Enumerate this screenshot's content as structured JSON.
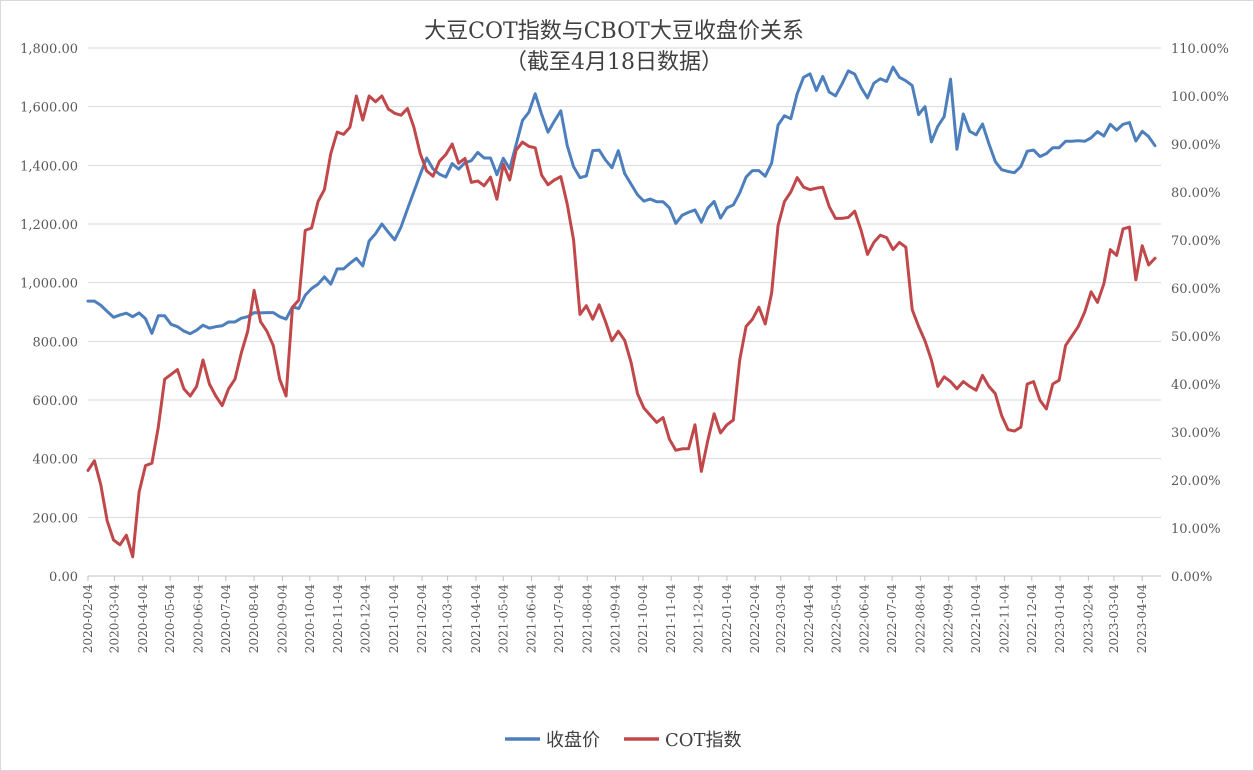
{
  "chart_data": {
    "type": "line",
    "title": "大豆COT指数与CBOT大豆收盘价关系",
    "subtitle": "（截至4月18日数据）",
    "xlabel": "",
    "ylabel": "",
    "y_left_ticks": [
      "0.00",
      "200.00",
      "400.00",
      "600.00",
      "800.00",
      "1,000.00",
      "1,200.00",
      "1,400.00",
      "1,600.00",
      "1,800.00"
    ],
    "y_right_ticks": [
      "0.00%",
      "10.00%",
      "20.00%",
      "30.00%",
      "40.00%",
      "50.00%",
      "60.00%",
      "70.00%",
      "80.00%",
      "90.00%",
      "100.00%",
      "110.00%"
    ],
    "ylim_left": [
      0,
      1800
    ],
    "ylim_right": [
      0,
      110
    ],
    "x_tick_labels": [
      "2020-02-04",
      "2020-03-04",
      "2020-04-04",
      "2020-05-04",
      "2020-06-04",
      "2020-07-04",
      "2020-08-04",
      "2020-09-04",
      "2020-10-04",
      "2020-11-04",
      "2020-12-04",
      "2021-01-04",
      "2021-02-04",
      "2021-03-04",
      "2021-04-04",
      "2021-05-04",
      "2021-06-04",
      "2021-07-04",
      "2021-08-04",
      "2021-09-04",
      "2021-10-04",
      "2021-11-04",
      "2021-12-04",
      "2022-01-04",
      "2022-02-04",
      "2022-03-04",
      "2022-04-04",
      "2022-05-04",
      "2022-06-04",
      "2022-07-04",
      "2022-08-04",
      "2022-09-04",
      "2022-10-04",
      "2022-11-04",
      "2022-12-04",
      "2023-01-04",
      "2023-02-04",
      "2023-03-04",
      "2023-04-04"
    ],
    "grid": true,
    "legend_position": "bottom",
    "series": [
      {
        "name": "收盘价",
        "axis": "left",
        "color": "#4e7fbd",
        "x": [
          "2020-02-04",
          "2020-02-11",
          "2020-02-18",
          "2020-02-25",
          "2020-03-03",
          "2020-03-10",
          "2020-03-17",
          "2020-03-24",
          "2020-03-31",
          "2020-04-07",
          "2020-04-14",
          "2020-04-21",
          "2020-04-28",
          "2020-05-05",
          "2020-05-12",
          "2020-05-19",
          "2020-05-26",
          "2020-06-02",
          "2020-06-09",
          "2020-06-16",
          "2020-06-23",
          "2020-06-30",
          "2020-07-07",
          "2020-07-14",
          "2020-07-21",
          "2020-07-28",
          "2020-08-04",
          "2020-08-11",
          "2020-08-18",
          "2020-08-25",
          "2020-09-01",
          "2020-09-08",
          "2020-09-15",
          "2020-09-22",
          "2020-09-29",
          "2020-10-06",
          "2020-10-13",
          "2020-10-20",
          "2020-10-27",
          "2020-11-03",
          "2020-11-10",
          "2020-11-17",
          "2020-11-24",
          "2020-12-01",
          "2020-12-08",
          "2020-12-15",
          "2020-12-22",
          "2020-12-29",
          "2021-01-05",
          "2021-01-12",
          "2021-01-19",
          "2021-01-26",
          "2021-02-02",
          "2021-02-09",
          "2021-02-16",
          "2021-02-23",
          "2021-03-02",
          "2021-03-09",
          "2021-03-16",
          "2021-03-23",
          "2021-03-30",
          "2021-04-06",
          "2021-04-13",
          "2021-04-20",
          "2021-04-27",
          "2021-05-04",
          "2021-05-11",
          "2021-05-18",
          "2021-05-25",
          "2021-06-01",
          "2021-06-08",
          "2021-06-15",
          "2021-06-22",
          "2021-06-29",
          "2021-07-06",
          "2021-07-13",
          "2021-07-20",
          "2021-07-27",
          "2021-08-03",
          "2021-08-10",
          "2021-08-17",
          "2021-08-24",
          "2021-08-31",
          "2021-09-07",
          "2021-09-14",
          "2021-09-21",
          "2021-09-28",
          "2021-10-05",
          "2021-10-12",
          "2021-10-19",
          "2021-10-26",
          "2021-11-02",
          "2021-11-09",
          "2021-11-16",
          "2021-11-23",
          "2021-11-30",
          "2021-12-07",
          "2021-12-14",
          "2021-12-21",
          "2021-12-28",
          "2022-01-04",
          "2022-01-11",
          "2022-01-18",
          "2022-01-25",
          "2022-02-01",
          "2022-02-08",
          "2022-02-15",
          "2022-02-22",
          "2022-03-01",
          "2022-03-08",
          "2022-03-15",
          "2022-03-22",
          "2022-03-29",
          "2022-04-05",
          "2022-04-12",
          "2022-04-19",
          "2022-04-26",
          "2022-05-03",
          "2022-05-10",
          "2022-05-17",
          "2022-05-24",
          "2022-05-31",
          "2022-06-07",
          "2022-06-14",
          "2022-06-21",
          "2022-06-28",
          "2022-07-05",
          "2022-07-12",
          "2022-07-19",
          "2022-07-26",
          "2022-08-02",
          "2022-08-09",
          "2022-08-16",
          "2022-08-23",
          "2022-08-30",
          "2022-09-06",
          "2022-09-13",
          "2022-09-20",
          "2022-09-27",
          "2022-10-04",
          "2022-10-11",
          "2022-10-18",
          "2022-10-25",
          "2022-11-01",
          "2022-11-08",
          "2022-11-15",
          "2022-11-22",
          "2022-11-29",
          "2022-12-06",
          "2022-12-13",
          "2022-12-20",
          "2022-12-27",
          "2023-01-03",
          "2023-01-10",
          "2023-01-17",
          "2023-01-24",
          "2023-01-31",
          "2023-02-07",
          "2023-02-14",
          "2023-02-21",
          "2023-02-28",
          "2023-03-07",
          "2023-03-14",
          "2023-03-21",
          "2023-03-28",
          "2023-04-04",
          "2023-04-11",
          "2023-04-18"
        ],
        "values": [
          937,
          937,
          923,
          902,
          882,
          890,
          896,
          884,
          897,
          877,
          827,
          887,
          887,
          858,
          850,
          835,
          826,
          838,
          855,
          845,
          850,
          853,
          866,
          866,
          879,
          884,
          898,
          897,
          898,
          898,
          884,
          876,
          917,
          912,
          957,
          980,
          995,
          1020,
          995,
          1047,
          1047,
          1066,
          1083,
          1057,
          1142,
          1167,
          1200,
          1172,
          1146,
          1190,
          1251,
          1310,
          1369,
          1425,
          1388,
          1370,
          1360,
          1406,
          1387,
          1409,
          1416,
          1444,
          1425,
          1425,
          1368,
          1424,
          1388,
          1470,
          1553,
          1581,
          1644,
          1574,
          1513,
          1551,
          1586,
          1468,
          1395,
          1358,
          1364,
          1450,
          1452,
          1418,
          1392,
          1450,
          1372,
          1336,
          1300,
          1278,
          1285,
          1276,
          1276,
          1255,
          1202,
          1230,
          1240,
          1248,
          1206,
          1254,
          1277,
          1220,
          1255,
          1265,
          1306,
          1360,
          1382,
          1382,
          1363,
          1408,
          1537,
          1569,
          1559,
          1644,
          1700,
          1712,
          1655,
          1703,
          1650,
          1637,
          1677,
          1722,
          1711,
          1665,
          1630,
          1680,
          1695,
          1686,
          1735,
          1700,
          1688,
          1672,
          1573,
          1600,
          1480,
          1533,
          1566,
          1694,
          1455,
          1575,
          1516,
          1504,
          1541,
          1474,
          1413,
          1385,
          1379,
          1375,
          1396,
          1448,
          1452,
          1430,
          1440,
          1460,
          1460,
          1482,
          1482,
          1484,
          1482,
          1494,
          1515,
          1500,
          1540,
          1520,
          1540,
          1546,
          1483,
          1516,
          1498,
          1467
        ]
      },
      {
        "name": "COT指数",
        "axis": "right",
        "color": "#c0484a",
        "x": [
          "2020-02-04",
          "2020-02-11",
          "2020-02-18",
          "2020-02-25",
          "2020-03-03",
          "2020-03-10",
          "2020-03-17",
          "2020-03-24",
          "2020-03-31",
          "2020-04-07",
          "2020-04-14",
          "2020-04-21",
          "2020-04-28",
          "2020-05-05",
          "2020-05-12",
          "2020-05-19",
          "2020-05-26",
          "2020-06-02",
          "2020-06-09",
          "2020-06-16",
          "2020-06-23",
          "2020-06-30",
          "2020-07-07",
          "2020-07-14",
          "2020-07-21",
          "2020-07-28",
          "2020-08-04",
          "2020-08-11",
          "2020-08-18",
          "2020-08-25",
          "2020-09-01",
          "2020-09-08",
          "2020-09-15",
          "2020-09-22",
          "2020-09-29",
          "2020-10-06",
          "2020-10-13",
          "2020-10-20",
          "2020-10-27",
          "2020-11-03",
          "2020-11-10",
          "2020-11-17",
          "2020-11-24",
          "2020-12-01",
          "2020-12-08",
          "2020-12-15",
          "2020-12-22",
          "2020-12-29",
          "2021-01-05",
          "2021-01-12",
          "2021-01-19",
          "2021-01-26",
          "2021-02-02",
          "2021-02-09",
          "2021-02-16",
          "2021-02-23",
          "2021-03-02",
          "2021-03-09",
          "2021-03-16",
          "2021-03-23",
          "2021-03-30",
          "2021-04-06",
          "2021-04-13",
          "2021-04-20",
          "2021-04-27",
          "2021-05-04",
          "2021-05-11",
          "2021-05-18",
          "2021-05-25",
          "2021-06-01",
          "2021-06-08",
          "2021-06-15",
          "2021-06-22",
          "2021-06-29",
          "2021-07-06",
          "2021-07-13",
          "2021-07-20",
          "2021-07-27",
          "2021-08-03",
          "2021-08-10",
          "2021-08-17",
          "2021-08-24",
          "2021-08-31",
          "2021-09-07",
          "2021-09-14",
          "2021-09-21",
          "2021-09-28",
          "2021-10-05",
          "2021-10-12",
          "2021-10-19",
          "2021-10-26",
          "2021-11-02",
          "2021-11-09",
          "2021-11-16",
          "2021-11-23",
          "2021-11-30",
          "2021-12-07",
          "2021-12-14",
          "2021-12-21",
          "2021-12-28",
          "2022-01-04",
          "2022-01-11",
          "2022-01-18",
          "2022-01-25",
          "2022-02-01",
          "2022-02-08",
          "2022-02-15",
          "2022-02-22",
          "2022-03-01",
          "2022-03-08",
          "2022-03-15",
          "2022-03-22",
          "2022-03-29",
          "2022-04-05",
          "2022-04-12",
          "2022-04-19",
          "2022-04-26",
          "2022-05-03",
          "2022-05-10",
          "2022-05-17",
          "2022-05-24",
          "2022-05-31",
          "2022-06-07",
          "2022-06-14",
          "2022-06-21",
          "2022-06-28",
          "2022-07-05",
          "2022-07-12",
          "2022-07-19",
          "2022-07-26",
          "2022-08-02",
          "2022-08-09",
          "2022-08-16",
          "2022-08-23",
          "2022-08-30",
          "2022-09-06",
          "2022-09-13",
          "2022-09-20",
          "2022-09-27",
          "2022-10-04",
          "2022-10-11",
          "2022-10-18",
          "2022-10-25",
          "2022-11-01",
          "2022-11-08",
          "2022-11-15",
          "2022-11-22",
          "2022-11-29",
          "2022-12-06",
          "2022-12-13",
          "2022-12-20",
          "2022-12-27",
          "2023-01-03",
          "2023-01-10",
          "2023-01-17",
          "2023-01-24",
          "2023-01-31",
          "2023-02-07",
          "2023-02-14",
          "2023-02-21",
          "2023-02-28",
          "2023-03-07",
          "2023-03-14",
          "2023-03-21",
          "2023-03-28",
          "2023-04-04",
          "2023-04-11",
          "2023-04-18"
        ],
        "values": [
          22,
          24,
          19,
          11.5,
          7.5,
          6.5,
          8.5,
          4,
          17.5,
          23,
          23.5,
          31,
          41,
          42,
          43,
          39,
          37.5,
          39.5,
          45,
          40,
          37.5,
          35.5,
          39,
          41,
          46.5,
          51,
          59.5,
          53,
          51,
          48,
          41,
          37.5,
          56,
          57.5,
          72,
          72.5,
          78,
          80.5,
          88,
          92.5,
          92,
          93.5,
          100,
          95,
          100,
          98.8,
          100,
          97.3,
          96.4,
          96,
          97.4,
          93.5,
          88,
          84.4,
          83.3,
          86.4,
          87.8,
          90,
          86,
          87,
          82,
          82.3,
          81.3,
          83.1,
          78.5,
          85.8,
          82.5,
          88.7,
          90.4,
          89.5,
          89.2,
          83.5,
          81.5,
          82.5,
          83.2,
          77.5,
          70,
          54.5,
          56.3,
          53.5,
          56.5,
          53,
          49,
          51,
          49.1,
          44.5,
          38,
          35,
          33.5,
          32,
          33,
          28.5,
          26.2,
          26.5,
          26.5,
          31.5,
          21.8,
          28.2,
          33.8,
          29.8,
          31.5,
          32.5,
          45,
          52,
          53.5,
          56,
          52.5,
          59,
          73,
          78,
          80,
          83,
          81,
          80.5,
          80.8,
          81,
          77,
          74.5,
          74.5,
          74.7,
          76,
          72,
          67,
          69.5,
          71,
          70.5,
          68,
          69.5,
          68.5,
          55.5,
          52,
          49,
          45,
          39.5,
          41.5,
          40.5,
          39,
          40.5,
          39.5,
          38.7,
          41.8,
          39.5,
          38,
          33.4,
          30.5,
          30.2,
          31,
          40,
          40.5,
          36.6,
          34.8,
          40,
          40.8,
          48,
          50,
          52,
          55,
          59.2,
          57,
          60.9,
          68,
          66.8,
          72.3,
          72.7,
          61.7,
          68.8,
          64.8,
          66.2
        ]
      }
    ]
  }
}
